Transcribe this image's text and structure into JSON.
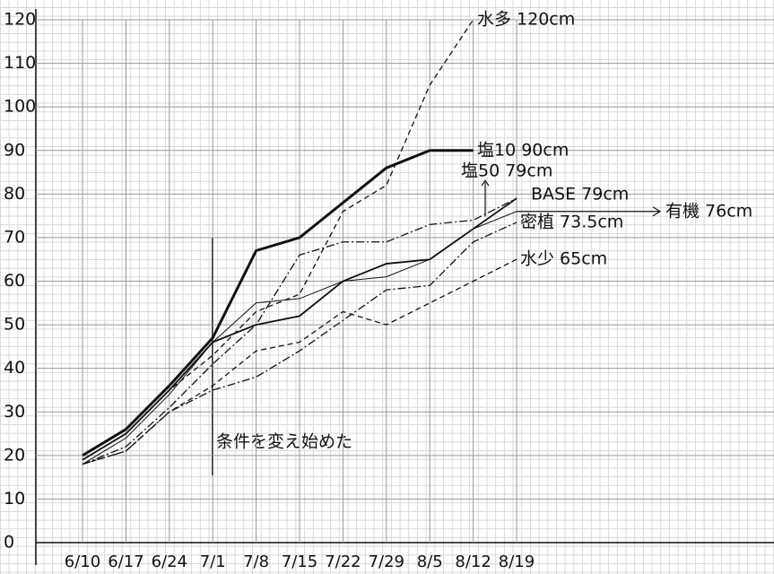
{
  "chart_data": {
    "type": "line",
    "categories": [
      "6/10",
      "6/17",
      "6/24",
      "7/1",
      "7/8",
      "7/15",
      "7/22",
      "7/29",
      "8/5",
      "8/12",
      "8/19"
    ],
    "ylim": [
      0,
      120
    ],
    "yticks": [
      0,
      10,
      20,
      30,
      40,
      50,
      60,
      70,
      80,
      90,
      100,
      110,
      120
    ],
    "grid": true,
    "annotation": "条件を変え始めた",
    "series": [
      {
        "name": "水多 120cm",
        "color": "#111111",
        "line_style": "dashed",
        "values": [
          19,
          25,
          35,
          43,
          53,
          57,
          76,
          82,
          105,
          120,
          null
        ]
      },
      {
        "name": "塩10 90cm",
        "color": "#111111",
        "line_style": "thick",
        "values": [
          20,
          26,
          36,
          47,
          67,
          70,
          78,
          86,
          90,
          90,
          null
        ]
      },
      {
        "name": "塩50 79cm",
        "color": "#111111",
        "line_style": "dashdot",
        "values": [
          18,
          22,
          31,
          41,
          50,
          66,
          69,
          69,
          73,
          74,
          79
        ]
      },
      {
        "name": "BASE 79cm",
        "color": "#111111",
        "line_style": "solid",
        "values": [
          19,
          25,
          35,
          46,
          50,
          52,
          60,
          64,
          65,
          72,
          79
        ]
      },
      {
        "name": "有機 76cm",
        "color": "#111111",
        "line_style": "thin",
        "values": [
          18,
          24,
          34,
          46,
          55,
          56,
          60,
          61,
          65,
          72,
          76
        ]
      },
      {
        "name": "密植 73.5cm",
        "color": "#111111",
        "line_style": "dashdot",
        "values": [
          18,
          21,
          30,
          35,
          38,
          44,
          51,
          58,
          59,
          69,
          73.5
        ]
      },
      {
        "name": "水少 65cm",
        "color": "#111111",
        "line_style": "dashed",
        "values": [
          18,
          21,
          30,
          36,
          44,
          46,
          53,
          50,
          55,
          60,
          65
        ]
      }
    ]
  }
}
